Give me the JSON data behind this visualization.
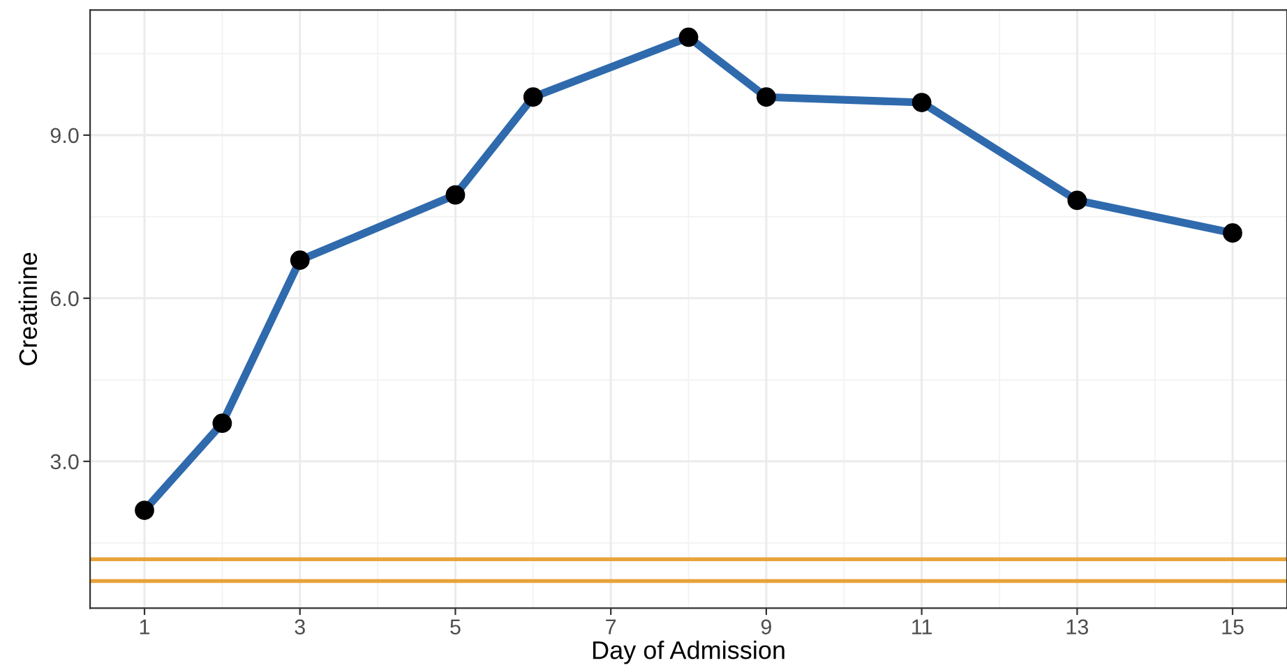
{
  "chart_data": {
    "type": "line",
    "xlabel": "Day of Admission",
    "ylabel": "Creatinine",
    "x": [
      1,
      2,
      3,
      5,
      6,
      8,
      9,
      11,
      13,
      15
    ],
    "series": [
      {
        "color": "#2f6aad",
        "values": [
          2.1,
          3.7,
          6.7,
          7.9,
          9.7,
          10.8,
          9.7,
          9.6,
          7.8,
          7.2
        ]
      }
    ],
    "marker": "circle",
    "line_style": "solid",
    "xlim": [
      0.3,
      15.7
    ],
    "xticks": [
      1,
      3,
      5,
      7,
      9,
      11,
      13,
      15
    ],
    "ylim": [
      0.3,
      11.3
    ],
    "yticks": [
      {
        "value": 3,
        "label": "3.0"
      },
      {
        "value": 6,
        "label": "6.0"
      },
      {
        "value": 9,
        "label": "9.0"
      }
    ],
    "ref_lines": [
      {
        "axis": "y",
        "value": 1.2,
        "color": "#e8a33a"
      },
      {
        "axis": "y",
        "value": 0.8,
        "color": "#e8a33a"
      }
    ],
    "grid": true,
    "legend": false
  }
}
